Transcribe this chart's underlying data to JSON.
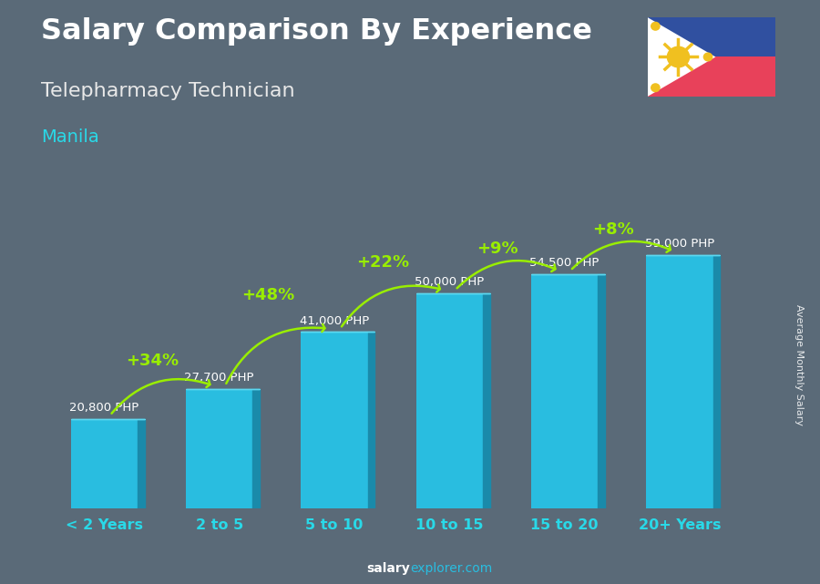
{
  "title_line1": "Salary Comparison By Experience",
  "title_line2": "Telepharmacy Technician",
  "title_line3": "Manila",
  "categories": [
    "< 2 Years",
    "2 to 5",
    "5 to 10",
    "10 to 15",
    "15 to 20",
    "20+ Years"
  ],
  "values": [
    20800,
    27700,
    41000,
    50000,
    54500,
    59000
  ],
  "value_labels": [
    "20,800 PHP",
    "27,700 PHP",
    "41,000 PHP",
    "50,000 PHP",
    "54,500 PHP",
    "59,000 PHP"
  ],
  "pct_labels": [
    "+34%",
    "+48%",
    "+22%",
    "+9%",
    "+8%"
  ],
  "bar_color_face": "#29bde0",
  "bar_color_side": "#1a8aaa",
  "bar_color_top": "#5cd8f0",
  "bg_color": "#5a6a78",
  "title1_color": "#ffffff",
  "title2_color": "#e8e8e8",
  "title3_color": "#29d9e8",
  "xlabel_color": "#29d9e8",
  "pct_color": "#99ee00",
  "value_label_color": "#ffffff",
  "footer_salary": "salary",
  "footer_explorer": "explorer",
  "footer_com": ".com",
  "footer_color_salary": "#ffffff",
  "footer_color_explorer": "#29bde0",
  "ylabel_text": "Average Monthly Salary",
  "ylim_max": 68000,
  "bar_width": 0.58
}
